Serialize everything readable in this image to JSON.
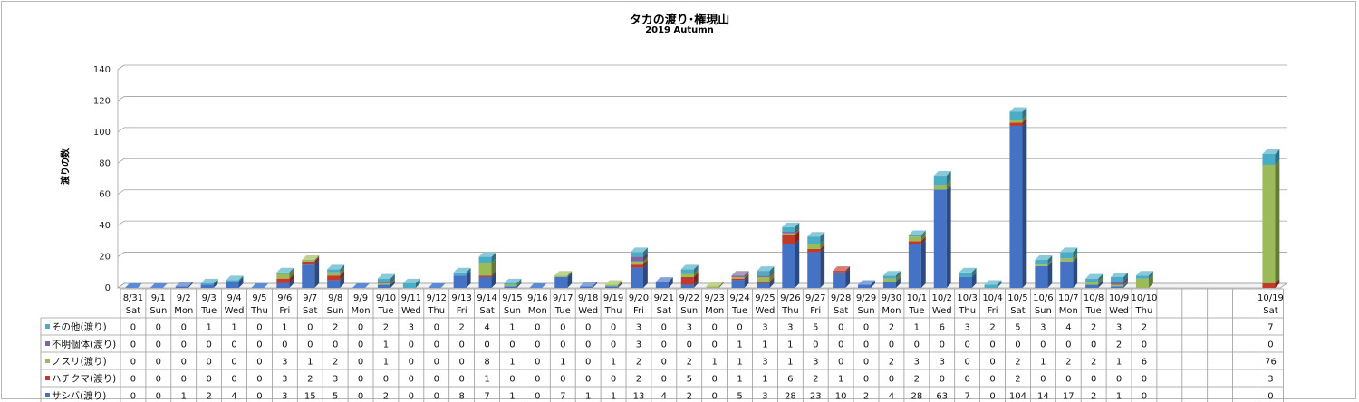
{
  "chart_data": {
    "type": "bar",
    "stacked": true,
    "title": "タカの渡り･権現山",
    "subtitle": "2019 Autumn",
    "ylabel": "渡りの数",
    "ylim": [
      0,
      140
    ],
    "yticks": [
      0,
      20,
      40,
      60,
      80,
      100,
      120,
      140
    ],
    "grid": true,
    "legend": "table-below",
    "categories": [
      "8/31",
      "9/1",
      "9/2",
      "9/3",
      "9/4",
      "9/5",
      "9/6",
      "9/7",
      "9/8",
      "9/9",
      "9/10",
      "9/11",
      "9/12",
      "9/13",
      "9/14",
      "9/15",
      "9/16",
      "9/17",
      "9/18",
      "9/19",
      "9/20",
      "9/21",
      "9/22",
      "9/23",
      "9/24",
      "9/25",
      "9/26",
      "9/27",
      "9/28",
      "9/29",
      "9/30",
      "10/1",
      "10/2",
      "10/3",
      "10/4",
      "10/5",
      "10/6",
      "10/7",
      "10/8",
      "10/9",
      "10/10",
      "",
      "",
      "",
      "",
      "10/19"
    ],
    "weekdays": [
      "Sat",
      "Sun",
      "Mon",
      "Tue",
      "Wed",
      "Thu",
      "Fri",
      "Sat",
      "Sun",
      "Mon",
      "Tue",
      "Wed",
      "Thu",
      "Fri",
      "Sat",
      "Sun",
      "Mon",
      "Tue",
      "Wed",
      "Thu",
      "Fri",
      "Sat",
      "Sun",
      "Mon",
      "Tue",
      "Wed",
      "Thu",
      "Fri",
      "Sat",
      "Sun",
      "Mon",
      "Tue",
      "Wed",
      "Thu",
      "Fri",
      "Sat",
      "Sun",
      "Mon",
      "Tue",
      "Wed",
      "Thu",
      "",
      "",
      "",
      "",
      "Sat"
    ],
    "series": [
      {
        "name": "サシバ(渡り)",
        "color": "#4472c4",
        "values": [
          0,
          0,
          1,
          2,
          4,
          0,
          3,
          15,
          5,
          0,
          2,
          0,
          0,
          8,
          7,
          1,
          0,
          7,
          1,
          1,
          13,
          4,
          2,
          0,
          5,
          3,
          28,
          23,
          10,
          2,
          4,
          28,
          63,
          7,
          0,
          104,
          14,
          17,
          2,
          1,
          0,
          null,
          null,
          null,
          null,
          0
        ]
      },
      {
        "name": "ハチクマ(渡り)",
        "color": "#c0392b",
        "values": [
          0,
          0,
          0,
          0,
          0,
          0,
          3,
          2,
          3,
          0,
          0,
          0,
          0,
          0,
          1,
          0,
          0,
          0,
          0,
          0,
          2,
          0,
          5,
          0,
          1,
          1,
          6,
          2,
          1,
          0,
          0,
          2,
          0,
          0,
          0,
          2,
          0,
          0,
          0,
          0,
          0,
          null,
          null,
          null,
          null,
          3
        ]
      },
      {
        "name": "ノスリ(渡り)",
        "color": "#9bbb59",
        "values": [
          0,
          0,
          0,
          0,
          0,
          0,
          3,
          1,
          2,
          0,
          1,
          0,
          0,
          0,
          8,
          1,
          0,
          1,
          0,
          1,
          2,
          0,
          2,
          1,
          1,
          3,
          1,
          3,
          0,
          0,
          2,
          3,
          3,
          0,
          0,
          2,
          1,
          2,
          2,
          1,
          6,
          null,
          null,
          null,
          null,
          76
        ]
      },
      {
        "name": "不明個体(渡り)",
        "color": "#8064a2",
        "values": [
          0,
          0,
          0,
          0,
          0,
          0,
          0,
          0,
          0,
          0,
          1,
          0,
          0,
          0,
          0,
          0,
          0,
          0,
          0,
          0,
          3,
          0,
          0,
          0,
          1,
          1,
          1,
          0,
          0,
          0,
          0,
          0,
          0,
          0,
          0,
          0,
          0,
          0,
          0,
          2,
          0,
          null,
          null,
          null,
          null,
          0
        ]
      },
      {
        "name": "その他(渡り)",
        "color": "#4bacc6",
        "values": [
          0,
          0,
          0,
          1,
          1,
          0,
          1,
          0,
          2,
          0,
          2,
          3,
          0,
          2,
          4,
          1,
          0,
          0,
          0,
          0,
          3,
          0,
          3,
          0,
          0,
          3,
          3,
          5,
          0,
          0,
          2,
          1,
          6,
          3,
          2,
          5,
          3,
          4,
          2,
          3,
          2,
          null,
          null,
          null,
          null,
          7
        ]
      }
    ]
  }
}
